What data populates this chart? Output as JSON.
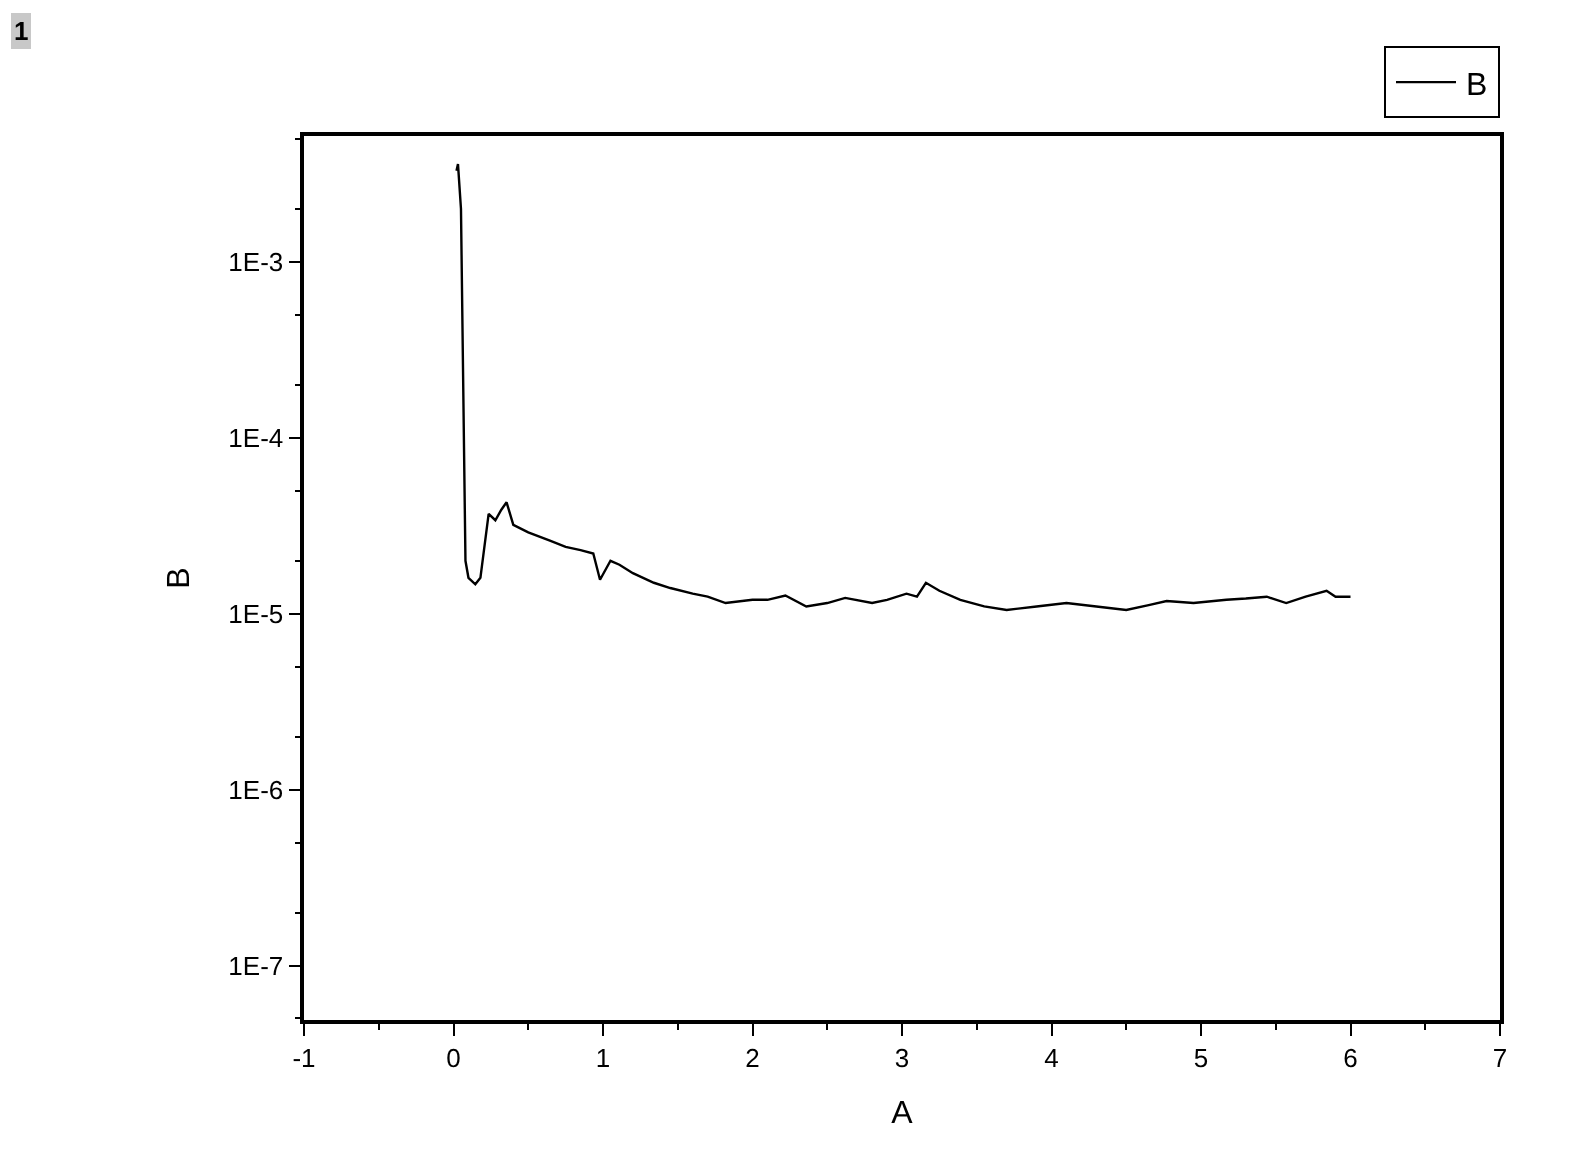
{
  "chart_data": {
    "type": "line",
    "xlabel": "A",
    "ylabel": "B",
    "log": "y",
    "legend": "top right",
    "marker": "none",
    "line_style": "solid",
    "annotations": [
      "1"
    ],
    "xlim": [
      -1,
      7
    ],
    "xticks": [
      -1,
      0,
      1,
      2,
      3,
      4,
      5,
      6,
      7
    ],
    "ylim": [
      4.9e-08,
      0.0052
    ],
    "yticks": [
      {
        "value": 1e-07,
        "label": "1E-7"
      },
      {
        "value": 1e-06,
        "label": "1E-6"
      },
      {
        "value": 1e-05,
        "label": "1E-5"
      },
      {
        "value": 0.0001,
        "label": "1E-4"
      },
      {
        "value": 0.001,
        "label": "1E-3"
      }
    ],
    "series": [
      {
        "name": "B",
        "color": "#000000",
        "x": [
          0.02,
          0.03,
          0.05,
          0.08,
          0.1,
          0.146,
          0.18,
          0.235,
          0.28,
          0.32,
          0.355,
          0.4,
          0.5,
          0.645,
          0.75,
          0.85,
          0.935,
          0.98,
          1.05,
          1.11,
          1.2,
          1.34,
          1.45,
          1.6,
          1.7,
          1.82,
          2.0,
          2.1,
          2.22,
          2.36,
          2.5,
          2.62,
          2.8,
          2.9,
          3.03,
          3.1,
          3.16,
          3.25,
          3.39,
          3.55,
          3.7,
          3.9,
          4.1,
          4.3,
          4.5,
          4.65,
          4.77,
          4.95,
          5.17,
          5.3,
          5.44,
          5.57,
          5.7,
          5.84,
          5.9,
          6.0
        ],
        "values": [
          0.0033,
          0.0036,
          0.002,
          2e-05,
          1.6e-05,
          1.47e-05,
          1.6e-05,
          3.7e-05,
          3.4e-05,
          3.9e-05,
          4.3e-05,
          3.2e-05,
          2.9e-05,
          2.6e-05,
          2.4e-05,
          2.3e-05,
          2.2e-05,
          1.56e-05,
          2e-05,
          1.9e-05,
          1.7e-05,
          1.5e-05,
          1.4e-05,
          1.3e-05,
          1.25e-05,
          1.15e-05,
          1.2e-05,
          1.2e-05,
          1.27e-05,
          1.1e-05,
          1.15e-05,
          1.23e-05,
          1.15e-05,
          1.2e-05,
          1.3e-05,
          1.25e-05,
          1.5e-05,
          1.35e-05,
          1.2e-05,
          1.1e-05,
          1.05e-05,
          1.1e-05,
          1.15e-05,
          1.1e-05,
          1.05e-05,
          1.12e-05,
          1.18e-05,
          1.15e-05,
          1.2e-05,
          1.22e-05,
          1.25e-05,
          1.15e-05,
          1.25e-05,
          1.35e-05,
          1.25e-05,
          1.25e-05
        ]
      }
    ]
  }
}
